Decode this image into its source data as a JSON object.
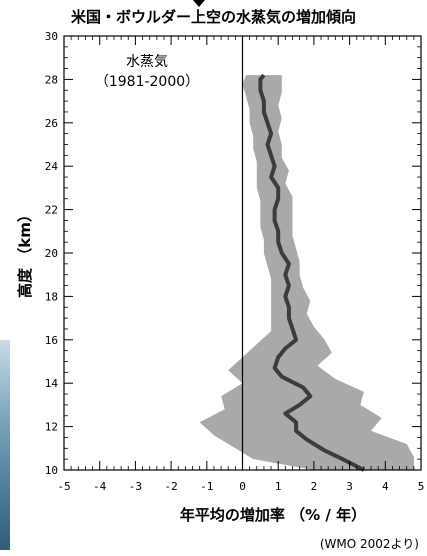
{
  "title": "米国・ボウルダー上空の水蒸気の増加傾向",
  "annotation_lines": [
    "水蒸気",
    "（1981-2000）"
  ],
  "source_note": "(WMO  2002より)",
  "colors": {
    "band": "#a9a9a9",
    "line": "#3c3c3c",
    "axis": "#000000"
  },
  "chart_data": {
    "type": "line",
    "xlabel": "年平均の増加率 （% / 年）",
    "ylabel": "高度 （km）",
    "xlim": [
      -5,
      5
    ],
    "ylim": [
      10,
      30
    ],
    "xticks": [
      -5,
      -4,
      -3,
      -2,
      -1,
      0,
      1,
      2,
      3,
      4,
      5
    ],
    "yticks": [
      10,
      12,
      14,
      16,
      18,
      20,
      22,
      24,
      26,
      28,
      30
    ],
    "reference_line_x": 0,
    "series": [
      {
        "kind": "mean",
        "points": [
          [
            3.4,
            10.0
          ],
          [
            2.8,
            10.5
          ],
          [
            2.3,
            10.9
          ],
          [
            1.8,
            11.4
          ],
          [
            1.5,
            11.8
          ],
          [
            1.5,
            12.2
          ],
          [
            1.2,
            12.6
          ],
          [
            1.6,
            13.0
          ],
          [
            1.9,
            13.4
          ],
          [
            1.7,
            13.8
          ],
          [
            1.1,
            14.3
          ],
          [
            0.9,
            14.7
          ],
          [
            1.0,
            15.2
          ],
          [
            1.2,
            15.6
          ],
          [
            1.5,
            16.0
          ],
          [
            1.4,
            16.5
          ],
          [
            1.3,
            17.0
          ],
          [
            1.3,
            17.5
          ],
          [
            1.2,
            18.0
          ],
          [
            1.3,
            18.5
          ],
          [
            1.2,
            19.0
          ],
          [
            1.3,
            19.5
          ],
          [
            1.1,
            20.0
          ],
          [
            1.0,
            20.5
          ],
          [
            1.0,
            21.0
          ],
          [
            0.9,
            21.5
          ],
          [
            0.9,
            22.0
          ],
          [
            1.0,
            22.5
          ],
          [
            1.0,
            23.0
          ],
          [
            0.8,
            23.5
          ],
          [
            0.9,
            24.0
          ],
          [
            0.8,
            24.5
          ],
          [
            0.7,
            25.0
          ],
          [
            0.8,
            25.5
          ],
          [
            0.7,
            26.0
          ],
          [
            0.6,
            26.5
          ],
          [
            0.6,
            27.0
          ],
          [
            0.5,
            27.5
          ],
          [
            0.5,
            28.0
          ],
          [
            0.6,
            28.2
          ]
        ]
      },
      {
        "kind": "band_upper",
        "points": [
          [
            4.8,
            10.0
          ],
          [
            4.8,
            10.6
          ],
          [
            4.6,
            11.2
          ],
          [
            3.6,
            11.8
          ],
          [
            3.9,
            12.4
          ],
          [
            3.3,
            13.0
          ],
          [
            3.4,
            13.6
          ],
          [
            2.6,
            14.2
          ],
          [
            2.1,
            14.8
          ],
          [
            2.5,
            15.4
          ],
          [
            2.3,
            16.0
          ],
          [
            2.0,
            16.6
          ],
          [
            1.8,
            17.2
          ],
          [
            1.9,
            17.8
          ],
          [
            1.7,
            18.4
          ],
          [
            1.6,
            19.0
          ],
          [
            1.6,
            19.6
          ],
          [
            1.5,
            20.2
          ],
          [
            1.4,
            20.8
          ],
          [
            1.4,
            21.4
          ],
          [
            1.4,
            22.0
          ],
          [
            1.4,
            22.6
          ],
          [
            1.2,
            23.2
          ],
          [
            1.3,
            23.8
          ],
          [
            1.1,
            24.4
          ],
          [
            1.1,
            25.0
          ],
          [
            1.0,
            25.6
          ],
          [
            1.1,
            26.2
          ],
          [
            1.0,
            26.8
          ],
          [
            1.1,
            27.4
          ],
          [
            1.1,
            28.2
          ]
        ]
      },
      {
        "kind": "band_lower",
        "points": [
          [
            2.0,
            10.0
          ],
          [
            0.3,
            10.5
          ],
          [
            -0.2,
            11.0
          ],
          [
            -0.8,
            11.6
          ],
          [
            -1.2,
            12.2
          ],
          [
            -0.5,
            12.8
          ],
          [
            -0.6,
            13.4
          ],
          [
            0.0,
            14.0
          ],
          [
            -0.4,
            14.6
          ],
          [
            0.0,
            15.2
          ],
          [
            0.4,
            15.8
          ],
          [
            0.8,
            16.4
          ],
          [
            0.8,
            17.0
          ],
          [
            0.8,
            17.6
          ],
          [
            0.8,
            18.2
          ],
          [
            0.8,
            18.8
          ],
          [
            0.7,
            19.4
          ],
          [
            0.6,
            20.0
          ],
          [
            0.6,
            20.6
          ],
          [
            0.5,
            21.2
          ],
          [
            0.5,
            21.8
          ],
          [
            0.5,
            22.4
          ],
          [
            0.4,
            23.0
          ],
          [
            0.4,
            23.6
          ],
          [
            0.4,
            24.2
          ],
          [
            0.3,
            24.8
          ],
          [
            0.3,
            25.4
          ],
          [
            0.2,
            26.0
          ],
          [
            0.2,
            26.6
          ],
          [
            0.1,
            27.2
          ],
          [
            0.0,
            27.8
          ],
          [
            0.1,
            28.2
          ]
        ]
      }
    ]
  }
}
